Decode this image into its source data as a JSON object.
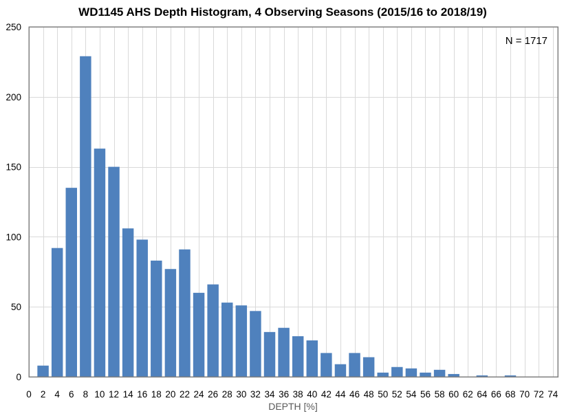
{
  "chart_data": {
    "type": "bar",
    "title": "WD1145 AHS Depth Histogram, 4 Observing Seasons (2015/16 to 2018/19)",
    "xlabel": "DEPTH [%]",
    "ylabel": "",
    "annotation": "N = 1717",
    "ylim": [
      0,
      250
    ],
    "yticks": [
      0,
      50,
      100,
      150,
      200,
      250
    ],
    "xticks": [
      0,
      2,
      4,
      6,
      8,
      10,
      12,
      14,
      16,
      18,
      20,
      22,
      24,
      26,
      28,
      30,
      32,
      34,
      36,
      38,
      40,
      42,
      44,
      46,
      48,
      50,
      52,
      54,
      56,
      58,
      60,
      62,
      64,
      66,
      68,
      70,
      72,
      74
    ],
    "bin_width": 2,
    "x": [
      2,
      4,
      6,
      8,
      10,
      12,
      14,
      16,
      18,
      20,
      22,
      24,
      26,
      28,
      30,
      32,
      34,
      36,
      38,
      40,
      42,
      44,
      46,
      48,
      50,
      52,
      54,
      56,
      58,
      60,
      62,
      64,
      66,
      68,
      70,
      72
    ],
    "values": [
      8,
      92,
      135,
      229,
      163,
      150,
      106,
      98,
      83,
      77,
      91,
      60,
      66,
      53,
      51,
      47,
      32,
      35,
      29,
      26,
      17,
      9,
      17,
      14,
      3,
      7,
      6,
      3,
      5,
      2,
      0,
      1,
      0,
      1,
      0,
      0
    ],
    "grid": true,
    "bar_color": "#4f81bd",
    "frame_color": "#808080",
    "grid_color": "#d9d9d9"
  }
}
